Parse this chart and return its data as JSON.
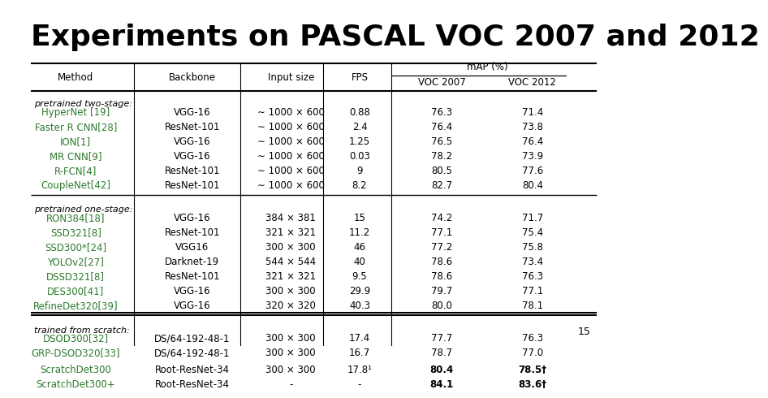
{
  "title": "Experiments on PASCAL VOC 2007 and 2012",
  "page_num": "15",
  "col_headers": [
    "Method",
    "Backbone",
    "Input size",
    "FPS",
    "VOC 2007",
    "VOC 2012"
  ],
  "map_header": "mAP (%)",
  "sections": [
    {
      "label": "pretrained two-stage:",
      "rows": [
        [
          "HyperNet [19]",
          "VGG-16",
          "∼ 1000 × 600",
          "0.88",
          "76.3",
          "71.4"
        ],
        [
          "Faster R CNN[28]",
          "ResNet-101",
          "∼ 1000 × 600",
          "2.4",
          "76.4",
          "73.8"
        ],
        [
          "ION[1]",
          "VGG-16",
          "∼ 1000 × 600",
          "1.25",
          "76.5",
          "76.4"
        ],
        [
          "MR CNN[9]",
          "VGG-16",
          "∼ 1000 × 600",
          "0.03",
          "78.2",
          "73.9"
        ],
        [
          "R-FCN[4]",
          "ResNet-101",
          "∼ 1000 × 600",
          "9",
          "80.5",
          "77.6"
        ],
        [
          "CoupleNet[42]",
          "ResNet-101",
          "∼ 1000 × 600",
          "8.2",
          "82.7",
          "80.4"
        ]
      ]
    },
    {
      "label": "pretrained one-stage:",
      "rows": [
        [
          "RON384[18]",
          "VGG-16",
          "384 × 381",
          "15",
          "74.2",
          "71.7"
        ],
        [
          "SSD321[8]",
          "ResNet-101",
          "321 × 321",
          "11.2",
          "77.1",
          "75.4"
        ],
        [
          "SSD300*[24]",
          "VGG16",
          "300 × 300",
          "46",
          "77.2",
          "75.8"
        ],
        [
          "YOLOv2[27]",
          "Darknet-19",
          "544 × 544",
          "40",
          "78.6",
          "73.4"
        ],
        [
          "DSSD321[8]",
          "ResNet-101",
          "321 × 321",
          "9.5",
          "78.6",
          "76.3"
        ],
        [
          "DES300[41]",
          "VGG-16",
          "300 × 300",
          "29.9",
          "79.7",
          "77.1"
        ],
        [
          "RefineDet320[39]",
          "VGG-16",
          "320 × 320",
          "40.3",
          "80.0",
          "78.1"
        ]
      ]
    },
    {
      "label": "trained from scratch:",
      "rows": [
        [
          "DSOD300[32]",
          "DS/64-192-48-1",
          "300 × 300",
          "17.4",
          "77.7",
          "76.3"
        ],
        [
          "GRP-DSOD320[33]",
          "DS/64-192-48-1",
          "300 × 300",
          "16.7",
          "78.7",
          "77.0"
        ]
      ]
    }
  ],
  "highlight_rows": [
    [
      "ScratchDet300",
      "Root-ResNet-34",
      "300 × 300",
      "17.8¹",
      "80.4",
      "78.5†"
    ],
    [
      "ScratchDet300+",
      "Root-ResNet-34",
      "-",
      "-",
      "84.1",
      "83.6†"
    ]
  ],
  "highlight_bold_cols": [
    4,
    5
  ],
  "highlight_color": "#c8813a",
  "bg_color": "#ffffff",
  "text_color": "#000000",
  "green_color": "#2d7a2d",
  "title_fontsize": 26,
  "table_fontsize": 8.5
}
